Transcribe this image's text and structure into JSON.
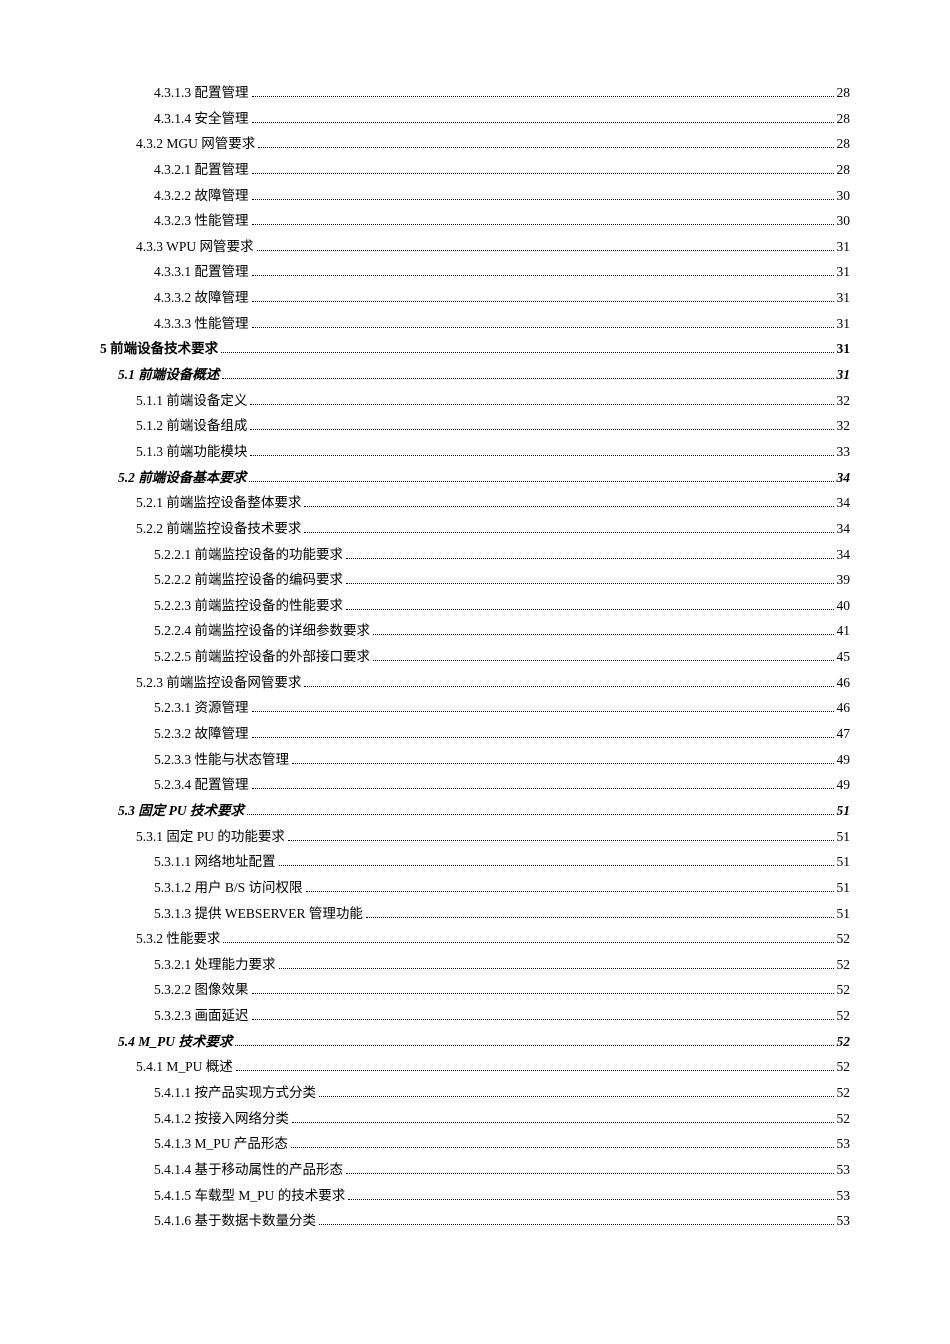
{
  "toc": [
    {
      "text": "4.3.1.3 配置管理",
      "page": "28",
      "indent": 3,
      "bold": false,
      "italic": false
    },
    {
      "text": "4.3.1.4 安全管理",
      "page": "28",
      "indent": 3,
      "bold": false,
      "italic": false
    },
    {
      "text": "4.3.2 MGU 网管要求",
      "page": "28",
      "indent": 2,
      "bold": false,
      "italic": false
    },
    {
      "text": "4.3.2.1 配置管理",
      "page": "28",
      "indent": 3,
      "bold": false,
      "italic": false
    },
    {
      "text": "4.3.2.2 故障管理",
      "page": "30",
      "indent": 3,
      "bold": false,
      "italic": false
    },
    {
      "text": "4.3.2.3 性能管理",
      "page": "30",
      "indent": 3,
      "bold": false,
      "italic": false
    },
    {
      "text": "4.3.3 WPU 网管要求",
      "page": "31",
      "indent": 2,
      "bold": false,
      "italic": false
    },
    {
      "text": "4.3.3.1 配置管理",
      "page": "31",
      "indent": 3,
      "bold": false,
      "italic": false
    },
    {
      "text": "4.3.3.2 故障管理",
      "page": "31",
      "indent": 3,
      "bold": false,
      "italic": false
    },
    {
      "text": "4.3.3.3 性能管理",
      "page": "31",
      "indent": 3,
      "bold": false,
      "italic": false
    },
    {
      "text": "5 前端设备技术要求",
      "page": "31",
      "indent": 0,
      "bold": true,
      "italic": false
    },
    {
      "text": "5.1 前端设备概述",
      "page": "31",
      "indent": 1,
      "bold": true,
      "italic": true
    },
    {
      "text": "5.1.1 前端设备定义",
      "page": "32",
      "indent": 2,
      "bold": false,
      "italic": false
    },
    {
      "text": "5.1.2 前端设备组成",
      "page": "32",
      "indent": 2,
      "bold": false,
      "italic": false
    },
    {
      "text": "5.1.3 前端功能模块",
      "page": "33",
      "indent": 2,
      "bold": false,
      "italic": false
    },
    {
      "text": "5.2 前端设备基本要求",
      "page": "34",
      "indent": 1,
      "bold": true,
      "italic": true
    },
    {
      "text": "5.2.1 前端监控设备整体要求",
      "page": "34",
      "indent": 2,
      "bold": false,
      "italic": false
    },
    {
      "text": "5.2.2 前端监控设备技术要求",
      "page": "34",
      "indent": 2,
      "bold": false,
      "italic": false
    },
    {
      "text": "5.2.2.1 前端监控设备的功能要求",
      "page": "34",
      "indent": 3,
      "bold": false,
      "italic": false
    },
    {
      "text": "5.2.2.2 前端监控设备的编码要求",
      "page": "39",
      "indent": 3,
      "bold": false,
      "italic": false
    },
    {
      "text": "5.2.2.3 前端监控设备的性能要求",
      "page": "40",
      "indent": 3,
      "bold": false,
      "italic": false
    },
    {
      "text": "5.2.2.4 前端监控设备的详细参数要求",
      "page": "41",
      "indent": 3,
      "bold": false,
      "italic": false
    },
    {
      "text": "5.2.2.5 前端监控设备的外部接口要求",
      "page": "45",
      "indent": 3,
      "bold": false,
      "italic": false
    },
    {
      "text": "5.2.3 前端监控设备网管要求",
      "page": "46",
      "indent": 2,
      "bold": false,
      "italic": false
    },
    {
      "text": "5.2.3.1 资源管理",
      "page": "46",
      "indent": 3,
      "bold": false,
      "italic": false
    },
    {
      "text": "5.2.3.2 故障管理",
      "page": "47",
      "indent": 3,
      "bold": false,
      "italic": false
    },
    {
      "text": "5.2.3.3 性能与状态管理",
      "page": "49",
      "indent": 3,
      "bold": false,
      "italic": false
    },
    {
      "text": "5.2.3.4 配置管理",
      "page": "49",
      "indent": 3,
      "bold": false,
      "italic": false
    },
    {
      "text": "5.3 固定 PU 技术要求",
      "page": "51",
      "indent": 1,
      "bold": true,
      "italic": true
    },
    {
      "text": "5.3.1 固定 PU 的功能要求",
      "page": "51",
      "indent": 2,
      "bold": false,
      "italic": false
    },
    {
      "text": "5.3.1.1 网络地址配置",
      "page": "51",
      "indent": 3,
      "bold": false,
      "italic": false
    },
    {
      "text": "5.3.1.2 用户 B/S 访问权限",
      "page": "51",
      "indent": 3,
      "bold": false,
      "italic": false
    },
    {
      "text": "5.3.1.3 提供 WEBSERVER 管理功能",
      "page": "51",
      "indent": 3,
      "bold": false,
      "italic": false
    },
    {
      "text": "5.3.2 性能要求",
      "page": "52",
      "indent": 2,
      "bold": false,
      "italic": false
    },
    {
      "text": "5.3.2.1 处理能力要求",
      "page": "52",
      "indent": 3,
      "bold": false,
      "italic": false
    },
    {
      "text": "5.3.2.2 图像效果",
      "page": "52",
      "indent": 3,
      "bold": false,
      "italic": false
    },
    {
      "text": "5.3.2.3 画面延迟",
      "page": "52",
      "indent": 3,
      "bold": false,
      "italic": false
    },
    {
      "text": "5.4 M_PU 技术要求",
      "page": "52",
      "indent": 1,
      "bold": true,
      "italic": true
    },
    {
      "text": "5.4.1 M_PU 概述",
      "page": "52",
      "indent": 2,
      "bold": false,
      "italic": false
    },
    {
      "text": "5.4.1.1 按产品实现方式分类",
      "page": "52",
      "indent": 3,
      "bold": false,
      "italic": false
    },
    {
      "text": "5.4.1.2 按接入网络分类",
      "page": "52",
      "indent": 3,
      "bold": false,
      "italic": false
    },
    {
      "text": "5.4.1.3 M_PU 产品形态",
      "page": "53",
      "indent": 3,
      "bold": false,
      "italic": false
    },
    {
      "text": "5.4.1.4 基于移动属性的产品形态",
      "page": "53",
      "indent": 3,
      "bold": false,
      "italic": false
    },
    {
      "text": "5.4.1.5 车载型 M_PU 的技术要求",
      "page": "53",
      "indent": 3,
      "bold": false,
      "italic": false
    },
    {
      "text": "5.4.1.6 基于数据卡数量分类",
      "page": "53",
      "indent": 3,
      "bold": false,
      "italic": false
    }
  ]
}
